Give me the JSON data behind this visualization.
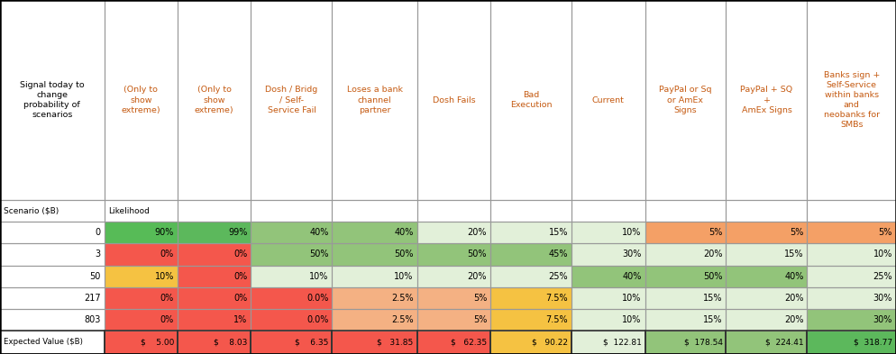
{
  "header_texts": [
    "Signal today to\nchange\nprobability of\nscenarios",
    "(Only to\nshow\nextreme)",
    "(Only to\nshow\nextreme)",
    "Dosh / Bridg\n/ Self-\nService Fail",
    "Loses a bank\nchannel\npartner",
    "Dosh Fails",
    "Bad\nExecution",
    "Current",
    "PayPal or Sq\nor AmEx\nSigns",
    "PayPal + SQ\n+\nAmEx Signs",
    "Banks sign +\nSelf-Service\nwithin banks\nand\nneobanks for\nSMBs"
  ],
  "subheader_texts": [
    "Scenario ($B)",
    "Likelihood",
    "",
    "",
    "",
    "",
    "",
    "",
    "",
    "",
    ""
  ],
  "data_rows": [
    {
      "scenario": "0",
      "values": [
        "90%",
        "99%",
        "40%",
        "40%",
        "20%",
        "15%",
        "10%",
        "5%",
        "5%",
        "5%"
      ],
      "colors": [
        "#57bb57",
        "#5cb85c",
        "#92c47a",
        "#92c47a",
        "#e2f0d9",
        "#e2f0d9",
        "#e2f0d9",
        "#f4a066",
        "#f4a066",
        "#f4a066"
      ]
    },
    {
      "scenario": "3",
      "values": [
        "0%",
        "0%",
        "50%",
        "50%",
        "50%",
        "45%",
        "30%",
        "20%",
        "15%",
        "10%"
      ],
      "colors": [
        "#f4574c",
        "#f4574c",
        "#92c47a",
        "#92c47a",
        "#92c47a",
        "#92c47a",
        "#e2f0d9",
        "#e2f0d9",
        "#e2f0d9",
        "#e2f0d9"
      ]
    },
    {
      "scenario": "50",
      "values": [
        "10%",
        "0%",
        "10%",
        "10%",
        "20%",
        "25%",
        "40%",
        "50%",
        "40%",
        "25%"
      ],
      "colors": [
        "#f5c242",
        "#f4574c",
        "#e2f0d9",
        "#e2f0d9",
        "#e2f0d9",
        "#e2f0d9",
        "#92c47a",
        "#92c47a",
        "#92c47a",
        "#e2f0d9"
      ]
    },
    {
      "scenario": "217",
      "values": [
        "0%",
        "0%",
        "0.0%",
        "2.5%",
        "5%",
        "7.5%",
        "10%",
        "15%",
        "20%",
        "30%"
      ],
      "colors": [
        "#f4574c",
        "#f4574c",
        "#f4574c",
        "#f4b183",
        "#f4b183",
        "#f5c242",
        "#e2f0d9",
        "#e2f0d9",
        "#e2f0d9",
        "#e2f0d9"
      ]
    },
    {
      "scenario": "803",
      "values": [
        "0%",
        "1%",
        "0.0%",
        "2.5%",
        "5%",
        "7.5%",
        "10%",
        "15%",
        "20%",
        "30%"
      ],
      "colors": [
        "#f4574c",
        "#f4574c",
        "#f4574c",
        "#f4b183",
        "#f4b183",
        "#f5c242",
        "#e2f0d9",
        "#e2f0d9",
        "#e2f0d9",
        "#92c47a"
      ]
    }
  ],
  "footer_label": "Expected Value ($B)",
  "footer_values": [
    "$    5.00",
    "$    8.03",
    "$    6.35",
    "$   31.85",
    "$   62.35",
    "$   90.22",
    "$  122.81",
    "$  178.54",
    "$  224.41",
    "$  318.77"
  ],
  "footer_colors": [
    "#f4574c",
    "#f4574c",
    "#f4574c",
    "#f4574c",
    "#f4574c",
    "#f5c242",
    "#e2f0d9",
    "#92c47a",
    "#92c47a",
    "#5cb85c"
  ],
  "col_widths_raw": [
    1.35,
    0.95,
    0.95,
    1.05,
    1.1,
    0.95,
    1.05,
    0.95,
    1.05,
    1.05,
    1.15
  ],
  "header_text_color": "#c55a11",
  "first_col_text_color": "#000000"
}
